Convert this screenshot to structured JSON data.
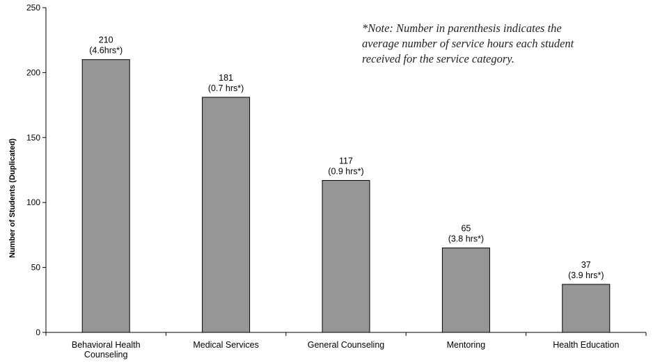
{
  "chart_data": {
    "type": "bar",
    "categories": [
      [
        "Behavioral Health",
        "Counseling"
      ],
      [
        "Medical Services"
      ],
      [
        "General Counseling"
      ],
      [
        "Mentoring"
      ],
      [
        "Health Education"
      ]
    ],
    "values": [
      210,
      181,
      117,
      65,
      37
    ],
    "data_labels": [
      [
        "210",
        "(4.6hrs*)"
      ],
      [
        "181",
        "(0.7 hrs*)"
      ],
      [
        "117",
        "(0.9 hrs*)"
      ],
      [
        "65",
        "(3.8 hrs*)"
      ],
      [
        "37",
        "(3.9 hrs*)"
      ]
    ],
    "ylabel": "Number of Students (Duplicated)",
    "xlabel": "",
    "ylim": [
      0,
      250
    ],
    "yticks": [
      0,
      50,
      100,
      150,
      200,
      250
    ],
    "grid": false,
    "colors": {
      "bar_fill": "#969696",
      "bar_stroke": "#000000",
      "axis": "#000000"
    }
  },
  "note": {
    "lines": [
      "*Note: Number in parenthesis indicates the",
      "average number of service hours each student",
      "received for the service category."
    ]
  }
}
